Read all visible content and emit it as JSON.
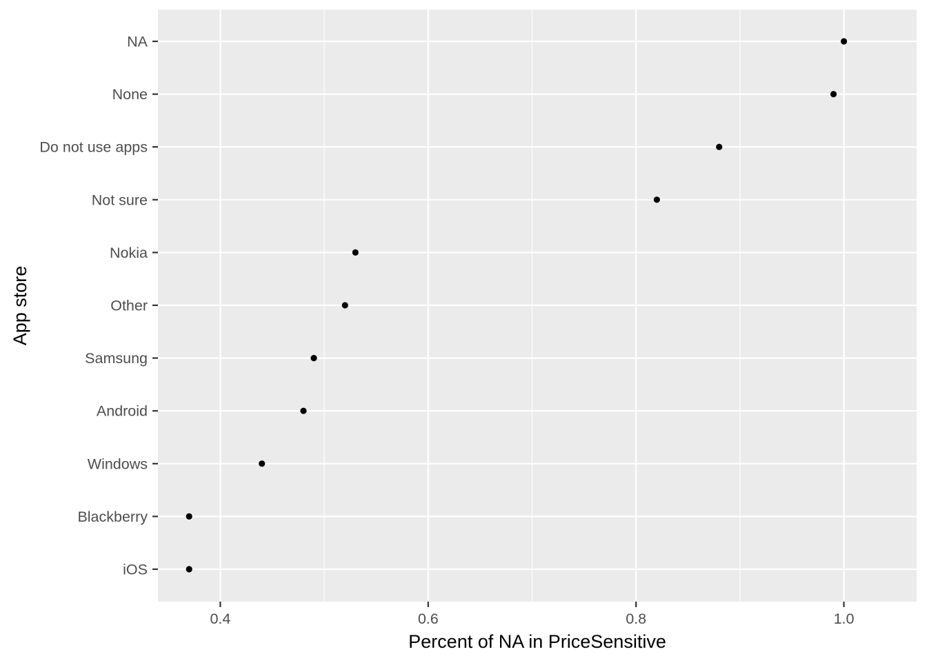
{
  "chart_data": {
    "type": "scatter",
    "title": "",
    "xlabel": "Percent of NA in PriceSensitive",
    "ylabel": "App store",
    "xlim": [
      0.34,
      1.07
    ],
    "x_ticks": [
      0.4,
      0.6,
      0.8,
      1.0
    ],
    "x_tick_labels": [
      "0.4",
      "0.6",
      "0.8",
      "1.0"
    ],
    "categories": [
      "NA",
      "None",
      "Do not use apps",
      "Not sure",
      "Nokia",
      "Other",
      "Samsung",
      "Android",
      "Windows",
      "Blackberry",
      "iOS"
    ],
    "values": [
      1.0,
      0.99,
      0.88,
      0.82,
      0.53,
      0.52,
      0.49,
      0.48,
      0.44,
      0.37,
      0.37
    ],
    "grid": true,
    "legend": "none",
    "colors": {
      "panel": "#ebebeb",
      "grid": "#ffffff",
      "point": "#000000",
      "tick_text": "#4d4d4d",
      "axis_title": "#000000"
    }
  }
}
